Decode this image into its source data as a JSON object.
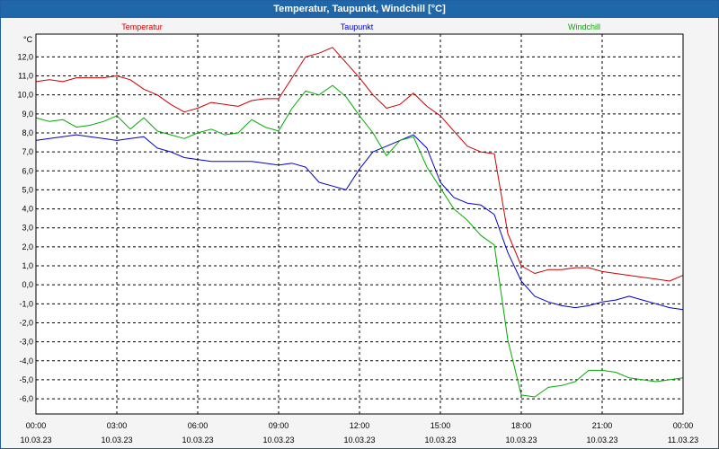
{
  "window": {
    "title": "Temperatur, Taupunkt, Windchill [°C]"
  },
  "chart_data": {
    "type": "line",
    "ylabel": "°C",
    "ylim": [
      -6.8,
      13.2
    ],
    "y_ticks": [
      "12,0",
      "11,0",
      "10,0",
      "9,0",
      "8,0",
      "7,0",
      "6,0",
      "5,0",
      "4,0",
      "3,0",
      "2,0",
      "1,0",
      "0,0",
      "-1,0",
      "-2,0",
      "-3,0",
      "-4,0",
      "-5,0",
      "-6,0"
    ],
    "y_tick_values": [
      12,
      11,
      10,
      9,
      8,
      7,
      6,
      5,
      4,
      3,
      2,
      1,
      0,
      -1,
      -2,
      -3,
      -4,
      -5,
      -6
    ],
    "x_ticks": [
      {
        "time": "00:00",
        "date": "10.03.23"
      },
      {
        "time": "03:00",
        "date": "10.03.23"
      },
      {
        "time": "06:00",
        "date": "10.03.23"
      },
      {
        "time": "09:00",
        "date": "10.03.23"
      },
      {
        "time": "12:00",
        "date": "10.03.23"
      },
      {
        "time": "15:00",
        "date": "10.03.23"
      },
      {
        "time": "18:00",
        "date": "10.03.23"
      },
      {
        "time": "21:00",
        "date": "10.03.23"
      },
      {
        "time": "00:00",
        "date": "11.03.23"
      }
    ],
    "xlim_hours": [
      0,
      24
    ],
    "grid": true,
    "legend_placement": "top",
    "series": [
      {
        "name": "Temperatur",
        "color": "#cc0000",
        "x": [
          0,
          0.5,
          1,
          1.5,
          2,
          2.5,
          3,
          3.5,
          4,
          4.5,
          5,
          5.5,
          6,
          6.5,
          7,
          7.5,
          8,
          8.5,
          9,
          9.5,
          10,
          10.5,
          11,
          11.5,
          12,
          12.5,
          13,
          13.5,
          14,
          14.5,
          15,
          15.5,
          16,
          16.5,
          17,
          17.5,
          18,
          18.5,
          19,
          19.5,
          20,
          20.5,
          21,
          21.5,
          22,
          22.5,
          23,
          23.5,
          24
        ],
        "y": [
          10.7,
          10.8,
          10.7,
          10.9,
          10.9,
          10.9,
          11.0,
          10.8,
          10.3,
          10.0,
          9.5,
          9.1,
          9.3,
          9.6,
          9.5,
          9.4,
          9.7,
          9.8,
          9.8,
          10.9,
          12.0,
          12.2,
          12.5,
          11.7,
          10.9,
          10.0,
          9.3,
          9.5,
          10.1,
          9.4,
          8.9,
          8.1,
          7.3,
          7.0,
          6.9,
          2.7,
          1.0,
          0.6,
          0.8,
          0.8,
          0.9,
          0.9,
          0.7,
          0.6,
          0.5,
          0.4,
          0.3,
          0.2,
          0.5
        ]
      },
      {
        "name": "Taupunkt",
        "color": "#0000cc",
        "x": [
          0,
          0.5,
          1,
          1.5,
          2,
          2.5,
          3,
          3.5,
          4,
          4.5,
          5,
          5.5,
          6,
          6.5,
          7,
          7.5,
          8,
          8.5,
          9,
          9.5,
          10,
          10.5,
          11,
          11.5,
          12,
          12.5,
          13,
          13.5,
          14,
          14.5,
          15,
          15.5,
          16,
          16.5,
          17,
          17.5,
          18,
          18.5,
          19,
          19.5,
          20,
          20.5,
          21,
          21.5,
          22,
          22.5,
          23,
          23.5,
          24
        ],
        "y": [
          7.6,
          7.7,
          7.8,
          7.9,
          7.8,
          7.7,
          7.6,
          7.7,
          7.8,
          7.2,
          7.0,
          6.7,
          6.6,
          6.5,
          6.5,
          6.5,
          6.5,
          6.4,
          6.3,
          6.4,
          6.2,
          5.4,
          5.2,
          5.0,
          6.1,
          7.0,
          7.3,
          7.6,
          7.9,
          7.2,
          5.4,
          4.6,
          4.3,
          4.2,
          3.7,
          1.7,
          0.2,
          -0.6,
          -0.9,
          -1.1,
          -1.2,
          -1.1,
          -0.9,
          -0.8,
          -0.6,
          -0.8,
          -1.0,
          -1.2,
          -1.3
        ]
      },
      {
        "name": "Windchill",
        "color": "#00aa00",
        "x": [
          0,
          0.5,
          1,
          1.5,
          2,
          2.5,
          3,
          3.5,
          4,
          4.5,
          5,
          5.5,
          6,
          6.5,
          7,
          7.5,
          8,
          8.5,
          9,
          9.5,
          10,
          10.5,
          11,
          11.5,
          12,
          12.5,
          13,
          13.5,
          14,
          14.5,
          15,
          15.5,
          16,
          16.5,
          17,
          17.5,
          18,
          18.5,
          19,
          19.5,
          20,
          20.5,
          21,
          21.5,
          22,
          22.5,
          23,
          23.5,
          24
        ],
        "y": [
          8.8,
          8.6,
          8.7,
          8.3,
          8.4,
          8.6,
          8.9,
          8.2,
          8.8,
          8.1,
          7.9,
          7.7,
          8.0,
          8.2,
          7.9,
          8.0,
          8.7,
          8.3,
          8.1,
          9.3,
          10.2,
          10.0,
          10.5,
          9.9,
          8.9,
          8.0,
          6.8,
          7.6,
          7.8,
          6.2,
          5.1,
          4.0,
          3.4,
          2.6,
          2.1,
          -2.9,
          -5.8,
          -5.9,
          -5.4,
          -5.3,
          -5.1,
          -4.5,
          -4.5,
          -4.6,
          -4.9,
          -5.0,
          -5.1,
          -5.0,
          -4.9
        ]
      }
    ]
  }
}
